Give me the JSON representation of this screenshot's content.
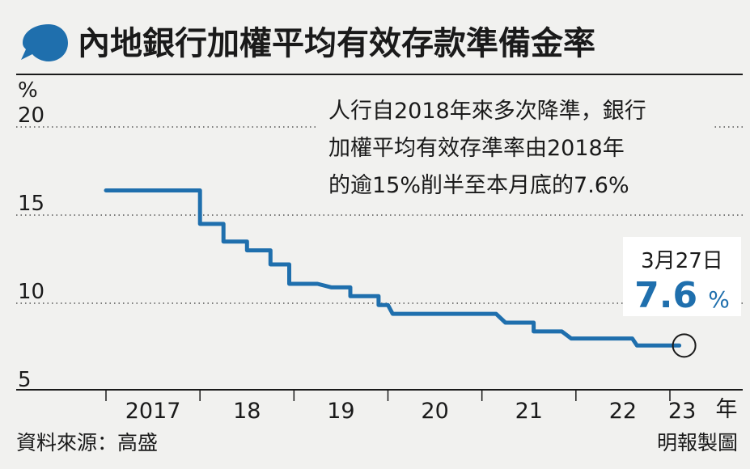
{
  "title": "內地銀行加權平均有效存款準備金率",
  "annotation_lines": [
    "人行自2018年來多次降準，銀行",
    "加權平均有效存準率由2018年",
    "的逾15%削半至本月底的7.6%"
  ],
  "callout": {
    "date": "3月27日",
    "value": "7.6",
    "unit": "%"
  },
  "source": "資料來源：高盛",
  "credit": "明報製圖",
  "colors": {
    "line": "#1f6fad",
    "accent": "#1f6fad",
    "background": "#f1f1ef"
  },
  "chart_data": {
    "type": "line",
    "title": "內地銀行加權平均有效存款準備金率",
    "ylabel": "%",
    "xlabel": "年",
    "ylim": [
      5,
      20
    ],
    "yticks": [
      5,
      10,
      15,
      20
    ],
    "xlim": [
      2016.5,
      2023.3
    ],
    "xtick_labels": [
      "2017",
      "18",
      "19",
      "20",
      "21",
      "22",
      "23"
    ],
    "xtick_label_positions": [
      2017.5,
      2018.5,
      2019.5,
      2020.5,
      2021.5,
      2022.5,
      2023.13
    ],
    "xtick_marks": [
      2017,
      2018,
      2019,
      2020,
      2021,
      2022,
      2023
    ],
    "grid": true,
    "series": [
      {
        "values": [
          [
            2017.0,
            16.4
          ],
          [
            2018.0,
            16.4
          ],
          [
            2018.0,
            14.5
          ],
          [
            2018.25,
            14.5
          ],
          [
            2018.25,
            13.5
          ],
          [
            2018.5,
            13.5
          ],
          [
            2018.5,
            13.0
          ],
          [
            2018.75,
            13.0
          ],
          [
            2018.75,
            12.2
          ],
          [
            2018.95,
            12.2
          ],
          [
            2018.95,
            11.1
          ],
          [
            2019.25,
            11.1
          ],
          [
            2019.4,
            10.9
          ],
          [
            2019.6,
            10.9
          ],
          [
            2019.6,
            10.4
          ],
          [
            2019.9,
            10.4
          ],
          [
            2019.9,
            9.9
          ],
          [
            2020.0,
            9.9
          ],
          [
            2020.05,
            9.4
          ],
          [
            2021.15,
            9.4
          ],
          [
            2021.25,
            8.9
          ],
          [
            2021.55,
            8.9
          ],
          [
            2021.55,
            8.4
          ],
          [
            2021.85,
            8.4
          ],
          [
            2021.95,
            8.0
          ],
          [
            2022.6,
            8.0
          ],
          [
            2022.65,
            7.6
          ],
          [
            2023.1,
            7.6
          ]
        ]
      }
    ],
    "highlight_point": [
      2023.1,
      7.6
    ]
  }
}
